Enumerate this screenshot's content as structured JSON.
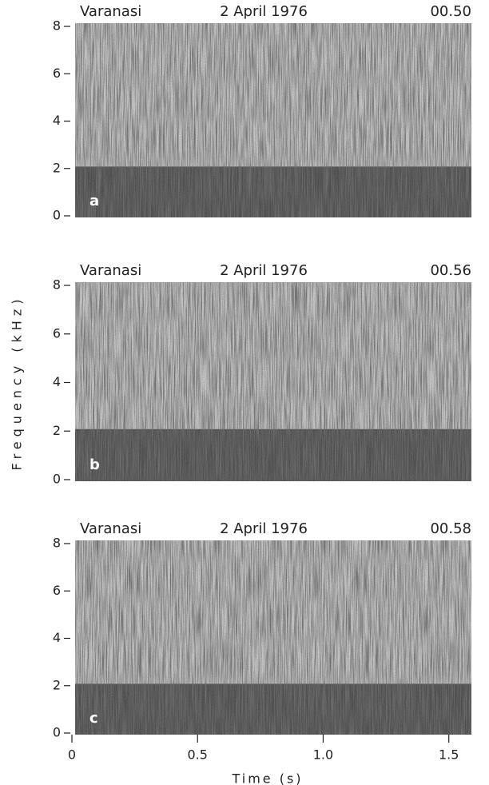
{
  "chart_data": [
    {
      "type": "spectrogram",
      "location": "Varanasi",
      "date": "2 April 1976",
      "time": "00.50",
      "panel": "a",
      "ylim": [
        0,
        8
      ],
      "yticks": [
        0,
        2,
        4,
        6,
        8
      ]
    },
    {
      "type": "spectrogram",
      "location": "Varanasi",
      "date": "2 April 1976",
      "time": "00.56",
      "panel": "b",
      "ylabel": "Frequency (kHz)",
      "ylim": [
        0,
        8
      ],
      "yticks": [
        0,
        2,
        4,
        6,
        8
      ]
    },
    {
      "type": "spectrogram",
      "location": "Varanasi",
      "date": "2 April 1976",
      "time": "00.58",
      "panel": "c",
      "ylim": [
        0,
        8
      ],
      "yticks": [
        0,
        2,
        4,
        6,
        8
      ],
      "xlabel": "Time (s)",
      "xlim": [
        0,
        1.59
      ],
      "xticks": [
        0,
        0.5,
        {
          "value": 1,
          "label": "1.0"
        },
        1.5
      ]
    }
  ]
}
